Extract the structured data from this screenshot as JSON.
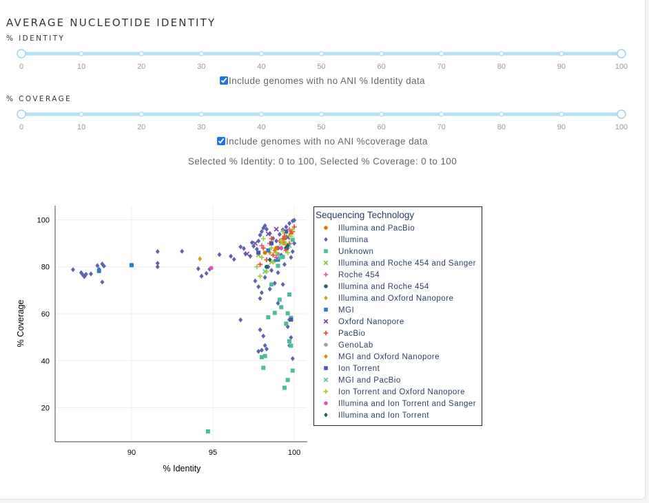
{
  "header": {
    "title": "AVERAGE NUCLEOTIDE IDENTITY"
  },
  "identity_filter": {
    "label": "% IDENTITY",
    "range": [
      0,
      100
    ],
    "ticks": [
      "0",
      "10",
      "20",
      "30",
      "40",
      "50",
      "60",
      "70",
      "80",
      "90",
      "100"
    ],
    "checkbox_label": "Include genomes with no ANI % Identity data",
    "checked": true
  },
  "coverage_filter": {
    "label": "% COVERAGE",
    "range": [
      0,
      100
    ],
    "ticks": [
      "0",
      "10",
      "20",
      "30",
      "40",
      "50",
      "60",
      "70",
      "80",
      "90",
      "100"
    ],
    "checkbox_label": "Include genomes with no ANI %coverage data",
    "checked": true
  },
  "summary": "Selected % Identity: 0 to 100, Selected % Coverage: 0 to 100",
  "colors": {
    "slider_track": "#b3e0f2",
    "slider_handle_border": "#9ad3ee",
    "accent": "#1a73e8"
  },
  "chart_data": {
    "type": "scatter",
    "xlabel": "% Identity",
    "ylabel": "% Coverage",
    "xlim": [
      85.3,
      100.8
    ],
    "ylim": [
      5.5,
      106
    ],
    "xticks": [
      90,
      95,
      100
    ],
    "yticks": [
      20,
      40,
      60,
      80,
      100
    ],
    "grid": true,
    "legend_title": "Sequencing Technology",
    "legend_position": "right",
    "series": [
      {
        "name": "Illumina and PacBio",
        "color": "#ef6c00",
        "symbol": "circle",
        "x": [
          98.2,
          99.4,
          99.8,
          98.9
        ],
        "y": [
          86,
          92,
          95,
          88
        ]
      },
      {
        "name": "Illumina",
        "color": "#5c64ae",
        "symbol": "diamond",
        "x": [
          86.4,
          86.9,
          87.0,
          87.1,
          87.5,
          87.9,
          88.2,
          88.3,
          88.2,
          88.0,
          87.2,
          91.6,
          91.6,
          91.6,
          93.1,
          94.1,
          94.3,
          94.6,
          94.8,
          95.4,
          96.1,
          96.3,
          96.7,
          96.9,
          97.0,
          97.3,
          97.4,
          97.5,
          97.7,
          97.8,
          97.9,
          98.0,
          98.1,
          98.2,
          98.3,
          98.5,
          98.7,
          98.9,
          99.1,
          99.3,
          99.5,
          99.7,
          99.9,
          100.0,
          97.6,
          97.8,
          98.0,
          98.2,
          98.4,
          98.6,
          98.8,
          99.0,
          99.2,
          99.4,
          99.6,
          99.8,
          96.7,
          97.9,
          98.1,
          98.2,
          99.7,
          99.6,
          99.9,
          99.8,
          99.7,
          98.0,
          97.8,
          98.3,
          99.0,
          98.5,
          97.9,
          99.3,
          99.9,
          100.0,
          98.8
        ],
        "y": [
          78.8,
          77.5,
          76.6,
          75.8,
          77.0,
          80.5,
          81.2,
          80.3,
          73.5,
          79.0,
          76.8,
          86.5,
          81.5,
          80.0,
          86.6,
          79.2,
          76.0,
          77.2,
          79.0,
          85.2,
          84.5,
          83.2,
          88.5,
          87.8,
          85.6,
          84.5,
          90.3,
          88.8,
          87.5,
          91.0,
          93.5,
          95.0,
          96.5,
          97.5,
          96.0,
          94.2,
          92.1,
          91.0,
          93.8,
          95.8,
          97.0,
          98.5,
          99.5,
          99.8,
          74.0,
          71.5,
          69.0,
          75.5,
          80.0,
          78.5,
          82.5,
          77.5,
          85.0,
          81.0,
          88.0,
          84.0,
          57.4,
          53.2,
          50.5,
          46.5,
          57.5,
          54.5,
          40.9,
          49.9,
          46.5,
          44.5,
          44.0,
          45.0,
          64.5,
          70.5,
          66.5,
          72.5,
          86.5,
          90.0,
          73.0
        ]
      },
      {
        "name": "Unknown",
        "color": "#4bbc9c",
        "symbol": "square",
        "x": [
          94.7,
          98.1,
          98.4,
          98.8,
          99.2,
          99.4,
          99.6,
          99.7,
          99.8,
          99.5,
          99.6,
          99.9,
          98.2,
          98.6,
          99.0,
          99.3,
          99.9,
          99.7,
          98.0,
          99.1,
          99.8
        ],
        "y": [
          9.9,
          37.0,
          58.5,
          60.4,
          62.8,
          28.5,
          31.8,
          48.3,
          46.4,
          55.8,
          60.2,
          35.8,
          42.0,
          72.5,
          80.4,
          84.2,
          91.5,
          68.2,
          41.5,
          66.0,
          58.3
        ]
      },
      {
        "name": "Illumina and Roche 454 and Sanger",
        "color": "#8cc63e",
        "symbol": "x",
        "x": [
          97.8,
          98.6,
          99.2,
          99.6
        ],
        "y": [
          85,
          82,
          90,
          93
        ]
      },
      {
        "name": "Roche 454",
        "color": "#e5629a",
        "symbol": "cross",
        "x": [
          98.0,
          98.9,
          99.7
        ],
        "y": [
          89,
          84,
          96
        ]
      },
      {
        "name": "Illumina and Roche 454",
        "color": "#166b5e",
        "symbol": "circle",
        "x": [
          98.3,
          99.5
        ],
        "y": [
          80,
          88
        ]
      },
      {
        "name": "Illumina and Oxford Nanopore",
        "color": "#d7a316",
        "symbol": "diamond",
        "x": [
          94.2,
          98.5,
          99.3
        ],
        "y": [
          83.4,
          86,
          91
        ]
      },
      {
        "name": "MGI",
        "color": "#2b7fbc",
        "symbol": "square",
        "x": [
          90.0,
          88.0,
          98.4,
          99.0
        ],
        "y": [
          80.7,
          78.2,
          87,
          83
        ]
      },
      {
        "name": "Oxford Nanopore",
        "color": "#7b4ba0",
        "symbol": "x",
        "x": [
          97.1,
          97.6,
          98.4,
          99.1,
          99.6,
          98.9
        ],
        "y": [
          85.5,
          90.0,
          94.0,
          88.0,
          92.5,
          96.0
        ]
      },
      {
        "name": "PacBio",
        "color": "#ef4c3a",
        "symbol": "cross",
        "x": [
          98.1,
          98.5,
          98.9,
          99.3,
          99.6,
          99.8,
          100.0,
          98.3,
          98.7,
          99.1,
          99.5,
          99.9,
          97.9,
          99.4,
          99.7,
          98.6
        ],
        "y": [
          88,
          90,
          86,
          92,
          89,
          94,
          97,
          83,
          85,
          91,
          87,
          95,
          81,
          93,
          90,
          92
        ]
      },
      {
        "name": "GenoLab",
        "color": "#9e9e9e",
        "symbol": "circle",
        "x": [
          99.0
        ],
        "y": [
          85.5
        ]
      },
      {
        "name": "MGI and Oxford Nanopore",
        "color": "#e87d12",
        "symbol": "diamond",
        "x": [
          98.8,
          99.4
        ],
        "y": [
          87,
          90
        ]
      },
      {
        "name": "Ion Torrent",
        "color": "#4958ab",
        "symbol": "square",
        "x": [
          97.8,
          98.6,
          99.5,
          99.8
        ],
        "y": [
          86,
          90,
          95,
          57.5
        ]
      },
      {
        "name": "MGI and PacBio",
        "color": "#5cc6a8",
        "symbol": "x",
        "x": [
          98.2,
          99.1,
          99.7
        ],
        "y": [
          78,
          84,
          89
        ]
      },
      {
        "name": "Ion Torrent and Oxford Nanopore",
        "color": "#9ecf42",
        "symbol": "cross",
        "x": [
          97.7,
          98.0,
          98.3,
          98.6,
          98.9,
          99.2,
          99.5,
          99.8,
          99.9,
          98.1,
          98.7,
          99.3,
          99.6,
          97.9
        ],
        "y": [
          80,
          84,
          78,
          88,
          86,
          91,
          90,
          93,
          96,
          92,
          82,
          95,
          86,
          76
        ]
      },
      {
        "name": "Illumina and Ion Torrent and Sanger",
        "color": "#d957b1",
        "symbol": "circle",
        "x": [
          94.9,
          99.2
        ],
        "y": [
          79.5,
          88
        ]
      },
      {
        "name": "Illumina and Ion Torrent",
        "color": "#1e6355",
        "symbol": "diamond",
        "x": [
          98.5,
          99.6
        ],
        "y": [
          83,
          89
        ]
      }
    ]
  }
}
